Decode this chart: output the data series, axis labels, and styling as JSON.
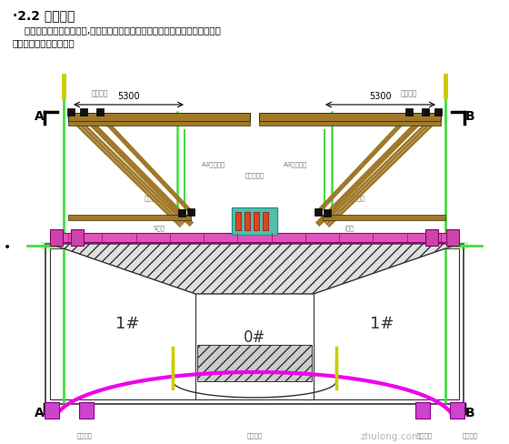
{
  "title": "·2.2 计算模型",
  "paragraph1": "    挂篹结构计算模型见下图,包括主桁架、立柱间横向连接系、前上横梁、底篹、",
  "paragraph2": "导梁等所有的承重系统。",
  "bg_color": "#ffffff",
  "text_color": "#000000",
  "green_line_color": "#44dd44",
  "pink_line_color": "#ee00ee",
  "brown_color": "#a07828",
  "dark_gray": "#333333",
  "gray_color": "#777777",
  "watermark": "zhulong.com",
  "label_0": "0#",
  "label_1_left": "1#",
  "label_1_right": "1#",
  "dim_5300": "5300"
}
